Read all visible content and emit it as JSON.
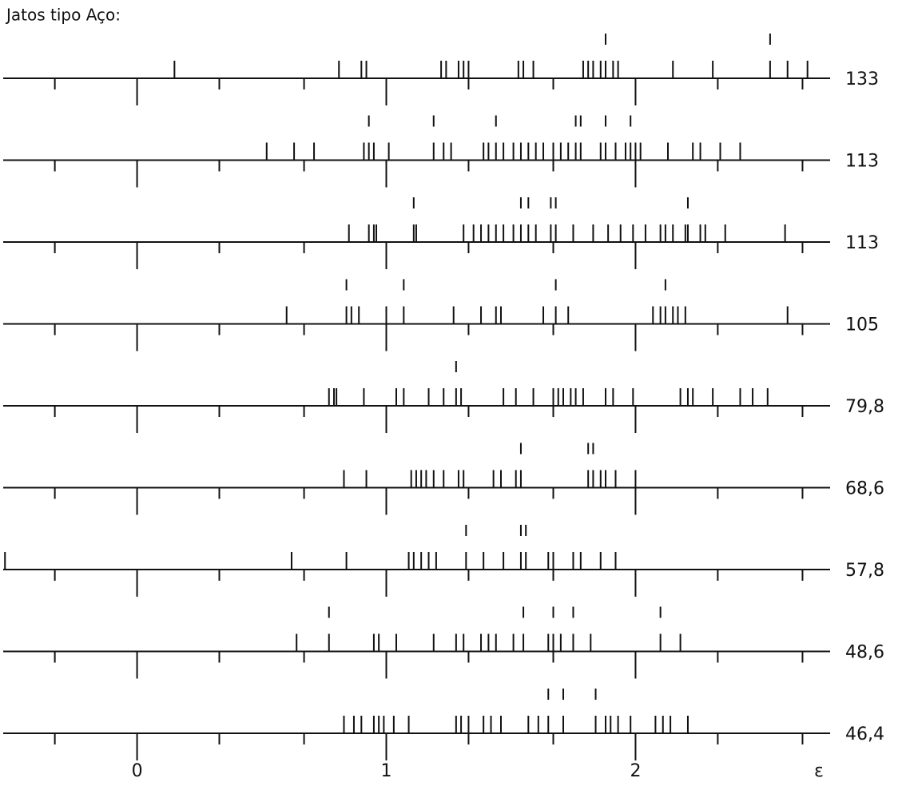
{
  "chart_data": {
    "type": "strip",
    "title": "Jatos tipo Aço:",
    "xlabel": "ε",
    "xlim": [
      -0.55,
      2.8
    ],
    "xticks": [
      0,
      1,
      2
    ],
    "minor_xticks": [
      -0.33,
      0.33,
      0.67,
      1.33,
      1.67,
      2.33,
      2.67
    ],
    "color": "#111111",
    "rows": [
      {
        "label": "133",
        "values": [
          0.15,
          0.81,
          0.9,
          0.92,
          1.22,
          1.24,
          1.29,
          1.31,
          1.33,
          1.53,
          1.55,
          1.59,
          1.79,
          1.81,
          1.83,
          1.86,
          1.88,
          1.88,
          1.91,
          1.93,
          2.15,
          2.31,
          2.54,
          2.54,
          2.61,
          2.69
        ]
      },
      {
        "label": "113",
        "values": [
          0.52,
          0.63,
          0.71,
          0.91,
          0.93,
          0.93,
          0.95,
          1.01,
          1.19,
          1.19,
          1.23,
          1.26,
          1.39,
          1.41,
          1.44,
          1.44,
          1.47,
          1.51,
          1.54,
          1.57,
          1.6,
          1.63,
          1.67,
          1.7,
          1.73,
          1.76,
          1.76,
          1.78,
          1.78,
          1.86,
          1.88,
          1.88,
          1.92,
          1.96,
          1.98,
          1.98,
          2.0,
          2.02,
          2.13,
          2.23,
          2.26,
          2.34,
          2.42
        ]
      },
      {
        "label": "113",
        "values": [
          0.85,
          0.93,
          0.95,
          0.96,
          1.11,
          1.11,
          1.12,
          1.31,
          1.35,
          1.38,
          1.41,
          1.44,
          1.47,
          1.51,
          1.54,
          1.54,
          1.57,
          1.57,
          1.6,
          1.66,
          1.66,
          1.68,
          1.68,
          1.75,
          1.83,
          1.89,
          1.94,
          1.99,
          2.04,
          2.1,
          2.12,
          2.15,
          2.2,
          2.21,
          2.21,
          2.26,
          2.28,
          2.36,
          2.6
        ]
      },
      {
        "label": "105",
        "values": [
          0.6,
          0.84,
          0.84,
          0.86,
          0.89,
          1.0,
          1.07,
          1.07,
          1.27,
          1.38,
          1.44,
          1.46,
          1.63,
          1.68,
          1.68,
          1.73,
          2.07,
          2.1,
          2.12,
          2.12,
          2.15,
          2.17,
          2.2,
          2.61
        ]
      },
      {
        "label": "79,8",
        "values": [
          0.77,
          0.79,
          0.8,
          0.91,
          1.04,
          1.07,
          1.17,
          1.23,
          1.28,
          1.28,
          1.3,
          1.47,
          1.52,
          1.59,
          1.67,
          1.69,
          1.71,
          1.74,
          1.76,
          1.79,
          1.88,
          1.91,
          1.99,
          2.18,
          2.21,
          2.23,
          2.31,
          2.42,
          2.47,
          2.53
        ]
      },
      {
        "label": "68,6",
        "values": [
          0.83,
          0.92,
          1.1,
          1.12,
          1.14,
          1.16,
          1.19,
          1.23,
          1.29,
          1.31,
          1.43,
          1.46,
          1.52,
          1.54,
          1.54,
          1.81,
          1.81,
          1.83,
          1.83,
          1.86,
          1.88,
          1.92,
          2.0
        ]
      },
      {
        "label": "57,8",
        "values": [
          -0.53,
          0.62,
          0.84,
          1.09,
          1.11,
          1.14,
          1.17,
          1.2,
          1.32,
          1.32,
          1.39,
          1.47,
          1.54,
          1.54,
          1.56,
          1.56,
          1.65,
          1.67,
          1.75,
          1.78,
          1.86,
          1.92
        ]
      },
      {
        "label": "48,6",
        "values": [
          0.64,
          0.77,
          0.77,
          0.95,
          0.97,
          1.04,
          1.19,
          1.28,
          1.31,
          1.38,
          1.41,
          1.44,
          1.51,
          1.55,
          1.55,
          1.65,
          1.67,
          1.67,
          1.7,
          1.75,
          1.75,
          1.82,
          2.1,
          2.1,
          2.18
        ]
      },
      {
        "label": "46,4",
        "values": [
          0.83,
          0.87,
          0.9,
          0.95,
          0.97,
          0.99,
          1.03,
          1.09,
          1.28,
          1.3,
          1.33,
          1.39,
          1.42,
          1.46,
          1.57,
          1.61,
          1.65,
          1.65,
          1.71,
          1.71,
          1.84,
          1.84,
          1.88,
          1.9,
          1.93,
          1.98,
          2.08,
          2.11,
          2.14,
          2.21
        ]
      }
    ]
  }
}
